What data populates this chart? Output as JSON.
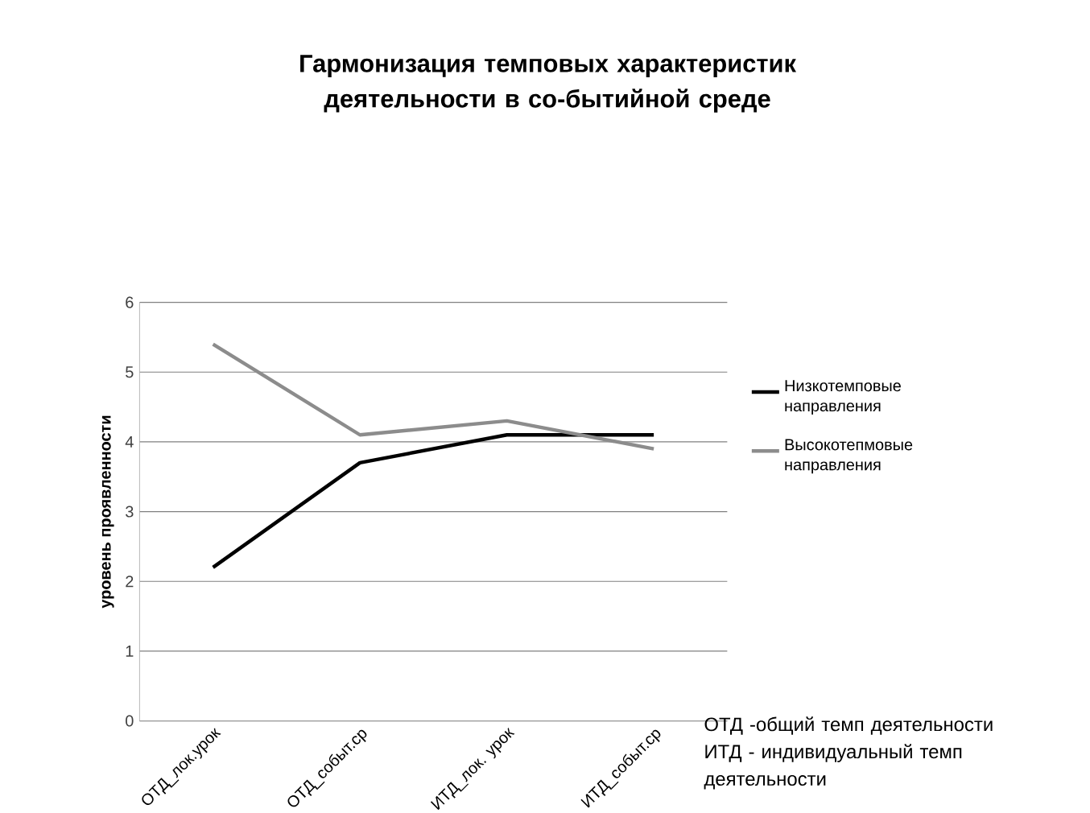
{
  "chart_data": {
    "type": "line",
    "title": "Гармонизация темповых характеристик деятельности в со-бытийной среде",
    "ylabel": "уровень проявленности",
    "categories": [
      "ОТД_лок.урок",
      "ОТД_событ.ср",
      "ИТД_лок. урок",
      "ИТД_событ.ср"
    ],
    "series": [
      {
        "name": "Низкотемповые направления",
        "color": "#000000",
        "values": [
          2.2,
          3.7,
          4.1,
          4.1
        ]
      },
      {
        "name": "Высокотепмовые направления",
        "color": "#8c8c8c",
        "values": [
          5.4,
          4.1,
          4.3,
          3.9
        ]
      }
    ],
    "ylim": [
      0,
      6
    ],
    "yticks": [
      0,
      1,
      2,
      3,
      4,
      5,
      6
    ],
    "grid": "y",
    "legend": "right",
    "annotations": [
      "ОТД -общий темп деятельности",
      "ИТД - индивидуальный темп  деятельности"
    ]
  }
}
